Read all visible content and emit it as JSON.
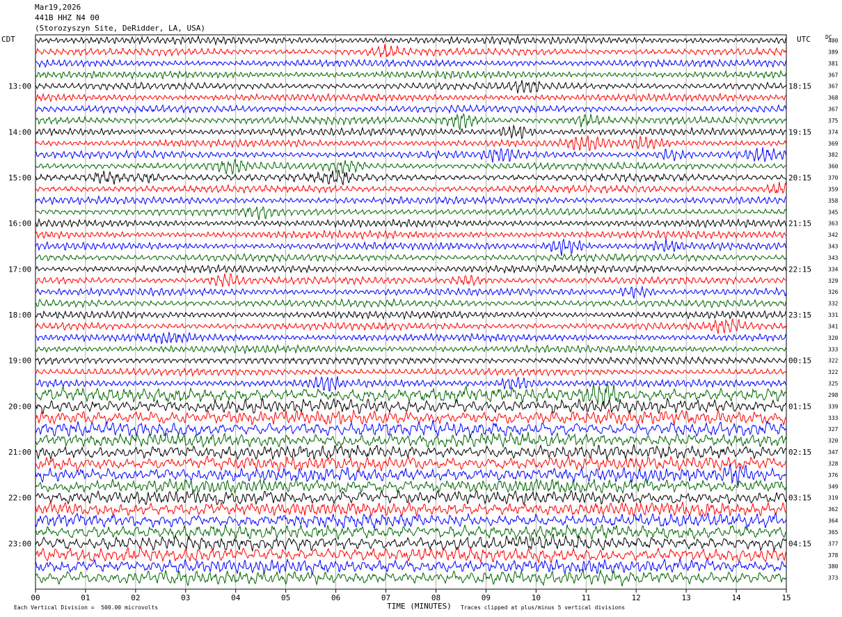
{
  "header": {
    "date": "Mar19,2026",
    "channel": "441B HHZ N4 00",
    "site": "(Storozyszyn Site, DeRidder, LA, USA)"
  },
  "labels": {
    "left_timezone": "CDT",
    "right_timezone": "UTC",
    "dc_heading": "DC"
  },
  "chart_data": {
    "type": "helicorder",
    "xlabel": "TIME (MINUTES)",
    "x_ticks": [
      "00",
      "01",
      "02",
      "03",
      "04",
      "05",
      "06",
      "07",
      "08",
      "09",
      "10",
      "11",
      "12",
      "13",
      "14",
      "15"
    ],
    "xlim": [
      0,
      15
    ],
    "rows": 48,
    "minutes_per_row": 15,
    "left_hour_labels": [
      {
        "row": 4,
        "label": "13:00"
      },
      {
        "row": 8,
        "label": "14:00"
      },
      {
        "row": 12,
        "label": "15:00"
      },
      {
        "row": 16,
        "label": "16:00"
      },
      {
        "row": 20,
        "label": "17:00"
      },
      {
        "row": 24,
        "label": "18:00"
      },
      {
        "row": 28,
        "label": "19:00"
      },
      {
        "row": 32,
        "label": "20:00"
      },
      {
        "row": 36,
        "label": "21:00"
      },
      {
        "row": 40,
        "label": "22:00"
      },
      {
        "row": 44,
        "label": "23:00"
      }
    ],
    "right_hour_labels": [
      {
        "row": 4,
        "label": "18:15"
      },
      {
        "row": 8,
        "label": "19:15"
      },
      {
        "row": 12,
        "label": "20:15"
      },
      {
        "row": 16,
        "label": "21:15"
      },
      {
        "row": 20,
        "label": "22:15"
      },
      {
        "row": 24,
        "label": "23:15"
      },
      {
        "row": 28,
        "label": "00:15"
      },
      {
        "row": 32,
        "label": "01:15"
      },
      {
        "row": 36,
        "label": "02:15"
      },
      {
        "row": 40,
        "label": "03:15"
      },
      {
        "row": 44,
        "label": "04:15"
      }
    ],
    "dc_offsets": [
      "400",
      "389",
      "381",
      "367",
      "367",
      "368",
      "367",
      "375",
      "374",
      "369",
      "382",
      "360",
      "370",
      "359",
      "358",
      "345",
      "363",
      "342",
      "343",
      "343",
      "334",
      "329",
      "326",
      "332",
      "331",
      "341",
      "320",
      "333",
      "322",
      "322",
      "325",
      "298",
      "339",
      "333",
      "327",
      "320",
      "347",
      "328",
      "376",
      "349",
      "319",
      "362",
      "364",
      "365",
      "377",
      "378",
      "380",
      "373"
    ],
    "trace_colors": [
      "#000000",
      "#ff0000",
      "#0000ff",
      "#006400"
    ],
    "events": [
      {
        "row": 1,
        "minute": 7.0,
        "amp": 1.3
      },
      {
        "row": 4,
        "minute": 9.8,
        "amp": 1.6
      },
      {
        "row": 7,
        "minute": 8.5,
        "amp": 2.4
      },
      {
        "row": 7,
        "minute": 11.0,
        "amp": 1.4
      },
      {
        "row": 8,
        "minute": 9.6,
        "amp": 1.8
      },
      {
        "row": 9,
        "minute": 11.0,
        "amp": 1.9
      },
      {
        "row": 9,
        "minute": 12.2,
        "amp": 1.3
      },
      {
        "row": 10,
        "minute": 9.3,
        "amp": 1.7
      },
      {
        "row": 10,
        "minute": 12.7,
        "amp": 1.2
      },
      {
        "row": 10,
        "minute": 14.5,
        "amp": 1.5
      },
      {
        "row": 11,
        "minute": 3.9,
        "amp": 1.7
      },
      {
        "row": 11,
        "minute": 6.2,
        "amp": 1.5
      },
      {
        "row": 12,
        "minute": 1.4,
        "amp": 1.8
      },
      {
        "row": 12,
        "minute": 6.0,
        "amp": 1.8
      },
      {
        "row": 12,
        "minute": 2.2,
        "amp": 1.3
      },
      {
        "row": 13,
        "minute": 14.9,
        "amp": 1.4
      },
      {
        "row": 15,
        "minute": 4.5,
        "amp": 1.3
      },
      {
        "row": 18,
        "minute": 10.6,
        "amp": 2.4
      },
      {
        "row": 18,
        "minute": 12.6,
        "amp": 1.3
      },
      {
        "row": 21,
        "minute": 3.8,
        "amp": 1.6
      },
      {
        "row": 21,
        "minute": 8.7,
        "amp": 1.3
      },
      {
        "row": 22,
        "minute": 12.0,
        "amp": 1.3
      },
      {
        "row": 25,
        "minute": 13.8,
        "amp": 1.8
      },
      {
        "row": 26,
        "minute": 2.7,
        "amp": 1.3
      },
      {
        "row": 30,
        "minute": 5.8,
        "amp": 1.8
      },
      {
        "row": 30,
        "minute": 9.6,
        "amp": 1.8
      },
      {
        "row": 31,
        "minute": 11.3,
        "amp": 2.4
      },
      {
        "row": 38,
        "minute": 14.0,
        "amp": 1.3
      }
    ],
    "footer_left": "Each Vertical Division =  500.00 microvolts",
    "footer_right": "Traces clipped at plus/minus 5 vertical divisions"
  }
}
